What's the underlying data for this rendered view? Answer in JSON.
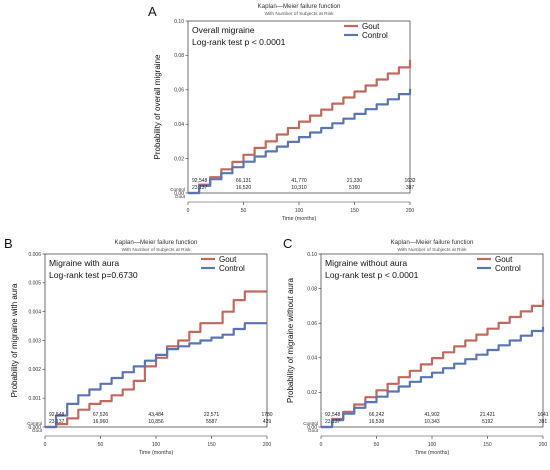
{
  "panel_labels": [
    "A",
    "B",
    "C"
  ],
  "colors": {
    "gout": "#c0695f",
    "control": "#5b74b4",
    "axis": "#444444"
  },
  "chart_data": [
    {
      "type": "line",
      "panel": "A",
      "title": "Kaplan—Meier failure function",
      "subtitle": "With Number of Subjects at Risk",
      "xlabel": "Time (months)",
      "ylabel": "Probability of overall migraine",
      "annotation_lines": [
        "Overall migraine",
        "Log-rank test p < 0.0001"
      ],
      "xlim": [
        0,
        200
      ],
      "ylim": [
        0,
        0.1
      ],
      "xticks": [
        0,
        50,
        100,
        150,
        200
      ],
      "yticks": [
        0,
        0.02,
        0.04,
        0.06,
        0.08,
        0.1
      ],
      "ytick_labels": [
        "0.00",
        "0.02",
        "0.04",
        "0.06",
        "0.08",
        "0.10"
      ],
      "legend": "top-right",
      "x": [
        0,
        10,
        20,
        30,
        40,
        50,
        60,
        70,
        80,
        90,
        100,
        110,
        120,
        130,
        140,
        150,
        160,
        170,
        180,
        190,
        200
      ],
      "series": [
        {
          "name": "Gout",
          "values": [
            0,
            0.0048,
            0.0092,
            0.0138,
            0.0181,
            0.0222,
            0.0262,
            0.03,
            0.034,
            0.0378,
            0.0415,
            0.045,
            0.0485,
            0.052,
            0.0555,
            0.059,
            0.0625,
            0.066,
            0.0695,
            0.073,
            0.0775
          ]
        },
        {
          "name": "Control",
          "values": [
            0,
            0.0042,
            0.008,
            0.0115,
            0.015,
            0.0182,
            0.0212,
            0.0242,
            0.027,
            0.0297,
            0.0325,
            0.0352,
            0.0378,
            0.0405,
            0.0432,
            0.046,
            0.0487,
            0.0515,
            0.0545,
            0.0575,
            0.0605
          ]
        }
      ],
      "at_risk": {
        "labels": [
          "Control",
          "Gout"
        ],
        "times": [
          0,
          50,
          100,
          150,
          200
        ],
        "rows": [
          [
            "92,548",
            "66,131",
            "41,770",
            "21,330",
            "1632"
          ],
          [
            "23,137",
            "16,520",
            "10,310",
            "5160",
            "387"
          ]
        ]
      }
    },
    {
      "type": "line",
      "panel": "B",
      "title": "Kaplan—Meier failure function",
      "subtitle": "With Number of Subjects at Risk",
      "xlabel": "Time (months)",
      "ylabel": "Probability of migraine with aura",
      "annotation_lines": [
        "Migraine with aura",
        "Log-rank test p=0.6730"
      ],
      "xlim": [
        0,
        200
      ],
      "ylim": [
        0,
        0.006
      ],
      "xticks": [
        0,
        50,
        100,
        150,
        200
      ],
      "yticks": [
        0,
        0.001,
        0.002,
        0.003,
        0.004,
        0.005,
        0.006
      ],
      "ytick_labels": [
        "0.000",
        "0.001",
        "0.002",
        "0.003",
        "0.004",
        "0.005",
        "0.006"
      ],
      "legend": "top-right",
      "x": [
        0,
        10,
        20,
        30,
        40,
        50,
        60,
        70,
        80,
        90,
        100,
        110,
        120,
        130,
        140,
        150,
        160,
        170,
        180,
        190,
        200
      ],
      "series": [
        {
          "name": "Gout",
          "values": [
            0,
            0.0001,
            0.0003,
            0.0006,
            0.0008,
            0.0009,
            0.0011,
            0.0013,
            0.0016,
            0.0021,
            0.0024,
            0.0028,
            0.003,
            0.0033,
            0.0036,
            0.0036,
            0.004,
            0.0044,
            0.0047,
            0.0047,
            0.0047
          ]
        },
        {
          "name": "Control",
          "values": [
            0,
            0.0004,
            0.0008,
            0.0011,
            0.0013,
            0.0015,
            0.0017,
            0.0019,
            0.0021,
            0.0023,
            0.0025,
            0.0027,
            0.0028,
            0.0029,
            0.003,
            0.0031,
            0.0032,
            0.0034,
            0.0036,
            0.0036,
            0.0036
          ]
        }
      ],
      "at_risk": {
        "labels": [
          "Control",
          "Gout"
        ],
        "times": [
          0,
          50,
          100,
          150,
          200
        ],
        "rows": [
          [
            "92,548",
            "67,526",
            "43,484",
            "22,571",
            "1780"
          ],
          [
            "23,137",
            "16,960",
            "10,856",
            "5587",
            "429"
          ]
        ]
      }
    },
    {
      "type": "line",
      "panel": "C",
      "title": "Kaplan—Meier failure function",
      "subtitle": "With Number of Subjects at Risk",
      "xlabel": "Time (months)",
      "ylabel": "Probability of migraine without aura",
      "annotation_lines": [
        "Migraine without aura",
        "Log-rank test p < 0.0001"
      ],
      "xlim": [
        0,
        200
      ],
      "ylim": [
        0,
        0.1
      ],
      "xticks": [
        0,
        50,
        100,
        150,
        200
      ],
      "yticks": [
        0,
        0.02,
        0.04,
        0.06,
        0.08,
        0.1
      ],
      "ytick_labels": [
        "0.00",
        "0.02",
        "0.04",
        "0.06",
        "0.08",
        "0.10"
      ],
      "legend": "top-right",
      "x": [
        0,
        10,
        20,
        30,
        40,
        50,
        60,
        70,
        80,
        90,
        100,
        110,
        120,
        130,
        140,
        150,
        160,
        170,
        180,
        190,
        200
      ],
      "series": [
        {
          "name": "Gout",
          "values": [
            0,
            0.0046,
            0.0088,
            0.013,
            0.0172,
            0.0212,
            0.025,
            0.0288,
            0.0325,
            0.0362,
            0.0398,
            0.0432,
            0.0466,
            0.05,
            0.0534,
            0.0568,
            0.0602,
            0.0636,
            0.0668,
            0.07,
            0.0735
          ]
        },
        {
          "name": "Control",
          "values": [
            0,
            0.004,
            0.0077,
            0.0111,
            0.0144,
            0.0175,
            0.0205,
            0.0234,
            0.0261,
            0.0288,
            0.0314,
            0.034,
            0.0366,
            0.0392,
            0.0418,
            0.0445,
            0.0472,
            0.05,
            0.0528,
            0.0555,
            0.058
          ]
        }
      ],
      "at_risk": {
        "labels": [
          "Control",
          "Gout"
        ],
        "times": [
          0,
          50,
          100,
          150,
          200
        ],
        "rows": [
          [
            "92,548",
            "66,242",
            "41,902",
            "21,421",
            "1641"
          ],
          [
            "23,137",
            "16,538",
            "10,343",
            "5192",
            "391"
          ]
        ]
      }
    }
  ]
}
